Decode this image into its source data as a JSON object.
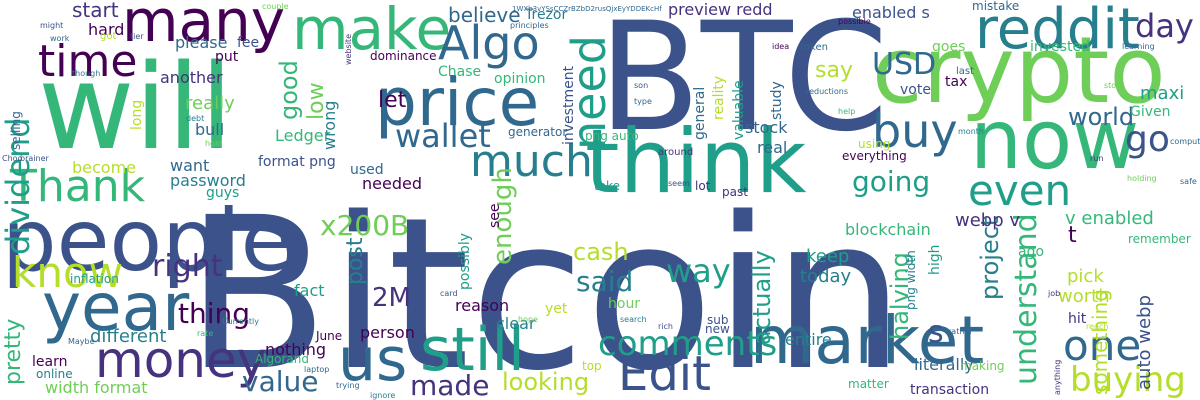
{
  "colors": {
    "background": "#ffffff",
    "palette": [
      "#3b528b",
      "#46327e",
      "#31688e",
      "#277f8e",
      "#1f9e89",
      "#35b779",
      "#6ece58",
      "#b5de2b",
      "#440154"
    ]
  },
  "words": [
    {
      "text": "Bitcoin",
      "color": "#3b528b"
    },
    {
      "text": "BTC",
      "color": "#3b528b"
    },
    {
      "text": "will",
      "color": "#35b779"
    },
    {
      "text": "crypto",
      "color": "#6ece58"
    },
    {
      "text": "think",
      "color": "#1f9e89"
    },
    {
      "text": "people",
      "color": "#3b528b"
    },
    {
      "text": "now",
      "color": "#35b779"
    },
    {
      "text": "price",
      "color": "#31688e"
    },
    {
      "text": "year",
      "color": "#31688e"
    },
    {
      "text": "market",
      "color": "#31688e"
    },
    {
      "text": "still",
      "color": "#1f9e89"
    },
    {
      "text": "us",
      "color": "#31688e"
    },
    {
      "text": "make",
      "color": "#35b779"
    },
    {
      "text": "reddit",
      "color": "#277f8e"
    },
    {
      "text": "many",
      "color": "#440154"
    },
    {
      "text": "money",
      "color": "#46327e"
    },
    {
      "text": "Edit",
      "color": "#3b528b"
    },
    {
      "text": "buy",
      "color": "#31688e"
    },
    {
      "text": "much",
      "color": "#277f8e"
    },
    {
      "text": "time",
      "color": "#440154"
    },
    {
      "text": "Algo",
      "color": "#31688e"
    },
    {
      "text": "need",
      "color": "#1f9e89"
    },
    {
      "text": "Thank",
      "color": "#35b779"
    },
    {
      "text": "one",
      "color": "#31688e"
    },
    {
      "text": "know",
      "color": "#b5de2b"
    },
    {
      "text": "even",
      "color": "#1f9e89"
    },
    {
      "text": "comments",
      "color": "#1f9e89"
    },
    {
      "text": "buying",
      "color": "#b5de2b"
    },
    {
      "text": "dividend",
      "color": "#1f9e89"
    },
    {
      "text": "understand",
      "color": "#35b779"
    },
    {
      "text": "right",
      "color": "#46327e"
    },
    {
      "text": "wallet",
      "color": "#31688e"
    },
    {
      "text": "way",
      "color": "#1f9e89"
    },
    {
      "text": "value",
      "color": "#31688e"
    },
    {
      "text": "made",
      "color": "#46327e"
    },
    {
      "text": "going",
      "color": "#1f9e89"
    },
    {
      "text": "x200B",
      "color": "#6ece58"
    },
    {
      "text": "said",
      "color": "#277f8e"
    },
    {
      "text": "enough",
      "color": "#6ece58"
    },
    {
      "text": "go",
      "color": "#3b528b"
    },
    {
      "text": "day",
      "color": "#46327e"
    },
    {
      "text": "USD",
      "color": "#31688e"
    },
    {
      "text": "thing",
      "color": "#440154"
    },
    {
      "text": "halving",
      "color": "#35b779"
    },
    {
      "text": "project",
      "color": "#277f8e"
    },
    {
      "text": "actually",
      "color": "#1f9e89"
    },
    {
      "text": "looking",
      "color": "#b5de2b"
    },
    {
      "text": "2M",
      "color": "#46327e"
    },
    {
      "text": "world",
      "color": "#31688e"
    },
    {
      "text": "post",
      "color": "#277f8e"
    },
    {
      "text": "cash",
      "color": "#b5de2b"
    },
    {
      "text": "good",
      "color": "#35b779"
    },
    {
      "text": "let",
      "color": "#440154"
    },
    {
      "text": "say",
      "color": "#b5de2b"
    },
    {
      "text": "something",
      "color": "#b5de2b"
    },
    {
      "text": "pretty",
      "color": "#35b779"
    },
    {
      "text": "believe",
      "color": "#31688e"
    },
    {
      "text": "start",
      "color": "#46327e"
    },
    {
      "text": "low",
      "color": "#6ece58"
    },
    {
      "text": "really",
      "color": "#6ece58"
    },
    {
      "text": "different",
      "color": "#277f8e"
    },
    {
      "text": "auto webp",
      "color": "#3b528b"
    },
    {
      "text": "maxi",
      "color": "#1f9e89"
    },
    {
      "text": "enabled s",
      "color": "#3b528b"
    },
    {
      "text": "preview redd",
      "color": "#46327e"
    },
    {
      "text": "v enabled",
      "color": "#35b779"
    },
    {
      "text": "webp v",
      "color": "#46327e"
    },
    {
      "text": "blockchain",
      "color": "#35b779"
    },
    {
      "text": "stock",
      "color": "#31688e"
    },
    {
      "text": "keep",
      "color": "#1f9e89"
    },
    {
      "text": "today",
      "color": "#277f8e"
    },
    {
      "text": "worth",
      "color": "#b5de2b"
    },
    {
      "text": "pick",
      "color": "#b5de2b"
    },
    {
      "text": "t",
      "color": "#440154"
    },
    {
      "text": "s",
      "color": "#3b528b"
    },
    {
      "text": "real",
      "color": "#31688e"
    },
    {
      "text": "entire",
      "color": "#277f8e"
    },
    {
      "text": "Ledger",
      "color": "#35b779"
    },
    {
      "text": "please",
      "color": "#31688e"
    },
    {
      "text": "hard",
      "color": "#440154"
    },
    {
      "text": "another",
      "color": "#46327e"
    },
    {
      "text": "bull",
      "color": "#31688e"
    },
    {
      "text": "wrong",
      "color": "#277f8e"
    },
    {
      "text": "password",
      "color": "#277f8e"
    },
    {
      "text": "want",
      "color": "#31688e"
    },
    {
      "text": "become",
      "color": "#b5de2b"
    },
    {
      "text": "needed",
      "color": "#440154"
    },
    {
      "text": "used",
      "color": "#31688e"
    },
    {
      "text": "format png",
      "color": "#3b528b"
    },
    {
      "text": "guys",
      "color": "#1f9e89"
    },
    {
      "text": "fact",
      "color": "#1f9e89"
    },
    {
      "text": "nothing",
      "color": "#440154"
    },
    {
      "text": "person",
      "color": "#440154"
    },
    {
      "text": "reason",
      "color": "#440154"
    },
    {
      "text": "clear",
      "color": "#277f8e"
    },
    {
      "text": "width format",
      "color": "#6ece58"
    },
    {
      "text": "learn",
      "color": "#440154"
    },
    {
      "text": "online",
      "color": "#277f8e"
    },
    {
      "text": "literally",
      "color": "#31688e"
    },
    {
      "text": "transaction",
      "color": "#46327e"
    },
    {
      "text": "hit",
      "color": "#46327e"
    },
    {
      "text": "Given",
      "color": "#35b779"
    },
    {
      "text": "goes",
      "color": "#6ece58"
    },
    {
      "text": "invested",
      "color": "#35b779"
    },
    {
      "text": "mistake",
      "color": "#31688e"
    },
    {
      "text": "tax",
      "color": "#440154"
    },
    {
      "text": "vote",
      "color": "#3b528b"
    },
    {
      "text": "Trezor",
      "color": "#277f8e"
    },
    {
      "text": "Chase",
      "color": "#35b779"
    },
    {
      "text": "dominance",
      "color": "#440154"
    },
    {
      "text": "opinion",
      "color": "#35b779"
    },
    {
      "text": "investment",
      "color": "#3b528b"
    },
    {
      "text": "study",
      "color": "#31688e"
    },
    {
      "text": "general",
      "color": "#31688e"
    },
    {
      "text": "valuable",
      "color": "#1f9e89"
    },
    {
      "text": "reality",
      "color": "#b5de2b"
    },
    {
      "text": "everything",
      "color": "#440154"
    },
    {
      "text": "using",
      "color": "#b5de2b"
    },
    {
      "text": "high",
      "color": "#1f9e89"
    },
    {
      "text": "png width",
      "color": "#277f8e"
    },
    {
      "text": "hour",
      "color": "#6ece58"
    },
    {
      "text": "yet",
      "color": "#b5de2b"
    },
    {
      "text": "see",
      "color": "#440154"
    },
    {
      "text": "possibly",
      "color": "#1f9e89"
    },
    {
      "text": "ago",
      "color": "#35b779"
    },
    {
      "text": "fee",
      "color": "#3b528b"
    },
    {
      "text": "put",
      "color": "#440154"
    },
    {
      "text": "long",
      "color": "#b5de2b"
    },
    {
      "text": "selling",
      "color": "#31688e"
    },
    {
      "text": "inflation",
      "color": "#1f9e89"
    },
    {
      "text": "generator",
      "color": "#31688e"
    },
    {
      "text": "png auto",
      "color": "#35b779"
    },
    {
      "text": "Algorand",
      "color": "#35b779"
    },
    {
      "text": "June",
      "color": "#440154"
    },
    {
      "text": "matter",
      "color": "#35b779"
    },
    {
      "text": "making",
      "color": "#6ece58"
    },
    {
      "text": "top",
      "color": "#b5de2b"
    },
    {
      "text": "new",
      "color": "#3b528b"
    },
    {
      "text": "sub",
      "color": "#3b528b"
    },
    {
      "text": "lot",
      "color": "#46327e"
    },
    {
      "text": "past",
      "color": "#46327e"
    },
    {
      "text": "take",
      "color": "#1f9e89"
    },
    {
      "text": "remember",
      "color": "#35b779"
    },
    {
      "text": "got",
      "color": "#b5de2b"
    },
    {
      "text": "last",
      "color": "#31688e"
    },
    {
      "text": "around",
      "color": "#46327e"
    },
    {
      "text": "token",
      "color": "#31688e"
    },
    {
      "text": "deductions",
      "color": "#31688e"
    },
    {
      "text": "website",
      "color": "#46327e"
    },
    {
      "text": "principles",
      "color": "#31688e"
    },
    {
      "text": "Currently",
      "color": "#277f8e"
    },
    {
      "text": "brainer",
      "color": "#3b528b"
    },
    {
      "text": "Choo",
      "color": "#3b528b"
    },
    {
      "text": "rich",
      "color": "#3b528b"
    },
    {
      "text": "search",
      "color": "#277f8e"
    },
    {
      "text": "learning",
      "color": "#31688e"
    },
    {
      "text": "computer",
      "color": "#31688e"
    },
    {
      "text": "might",
      "color": "#3b528b"
    },
    {
      "text": "work",
      "color": "#31688e"
    },
    {
      "text": "though",
      "color": "#277f8e"
    },
    {
      "text": "tier",
      "color": "#3b528b"
    },
    {
      "text": "couple",
      "color": "#6ece58"
    },
    {
      "text": "possible",
      "color": "#440154"
    },
    {
      "text": "idea",
      "color": "#440154"
    },
    {
      "text": "hope",
      "color": "#6ece58"
    },
    {
      "text": "trying",
      "color": "#31688e"
    },
    {
      "text": "ignore",
      "color": "#277f8e"
    },
    {
      "text": "rather",
      "color": "#31688e"
    },
    {
      "text": "type",
      "color": "#31688e"
    },
    {
      "text": "month",
      "color": "#277f8e"
    },
    {
      "text": "help",
      "color": "#35b779"
    },
    {
      "text": "run",
      "color": "#46327e"
    },
    {
      "text": "stop",
      "color": "#6ece58"
    },
    {
      "text": "safe",
      "color": "#31688e"
    },
    {
      "text": "anything",
      "color": "#46327e"
    },
    {
      "text": "debt",
      "color": "#277f8e"
    },
    {
      "text": "hold",
      "color": "#6ece58"
    },
    {
      "text": "holding",
      "color": "#6ece58"
    },
    {
      "text": "Maybe",
      "color": "#31688e"
    },
    {
      "text": "rate",
      "color": "#35b779"
    },
    {
      "text": "laptop",
      "color": "#31688e"
    },
    {
      "text": "card",
      "color": "#3b528b"
    },
    {
      "text": "son",
      "color": "#3b528b"
    },
    {
      "text": "reach",
      "color": "#b5de2b"
    },
    {
      "text": "job",
      "color": "#46327e"
    },
    {
      "text": "seem",
      "color": "#3b528b"
    },
    {
      "text": "1WXb3vYSsCCZrBZbD2rusQjxEyYDDEKcHf",
      "color": "#31688e"
    }
  ]
}
